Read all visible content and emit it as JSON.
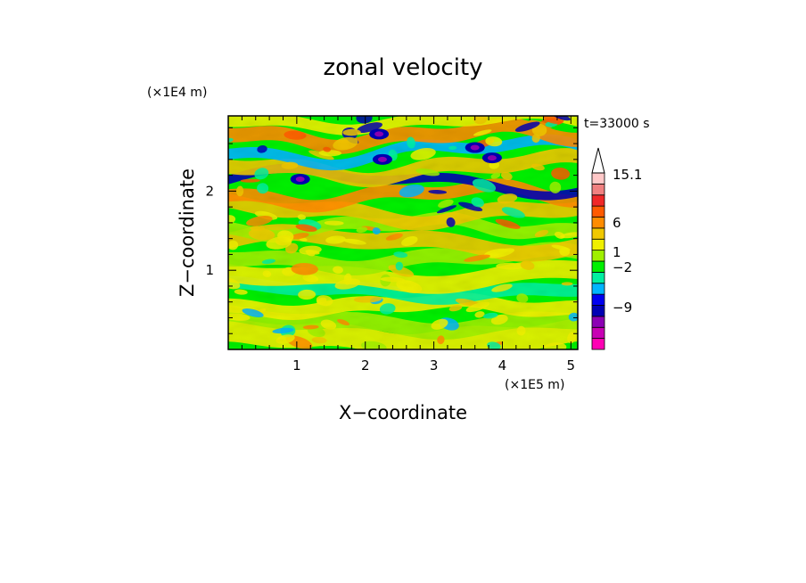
{
  "chart_data": {
    "type": "heatmap",
    "title": "zonal velocity",
    "xlabel": "X−coordinate",
    "ylabel": "Z−coordinate",
    "x_unit": "(×1E5 m)",
    "y_unit": "(×1E4 m)",
    "time_label": "t=33000 s",
    "xlim": [
      0,
      5.1
    ],
    "ylim": [
      0,
      2.95
    ],
    "x_ticks": [
      1,
      2,
      3,
      4,
      5
    ],
    "x_tick_labels": [
      "1",
      "2",
      "3",
      "4",
      "5"
    ],
    "y_ticks": [
      1,
      2
    ],
    "y_tick_labels": [
      "1",
      "2"
    ],
    "colorbar": {
      "levels": [
        -16,
        -12,
        -9,
        -6,
        -4,
        -2,
        -1,
        0,
        1,
        2,
        4,
        6,
        8,
        10,
        12.5,
        15.1
      ],
      "colors": [
        "#ff00b4",
        "#c800b4",
        "#8c00b4",
        "#0000b4",
        "#0000f0",
        "#00b4ff",
        "#00f0a0",
        "#00f000",
        "#a0f000",
        "#f0f000",
        "#f0c800",
        "#ff8c00",
        "#ff5a00",
        "#f02828",
        "#f08080",
        "#ffc8c8"
      ],
      "labeled_values": [
        "15.1",
        "6",
        "1",
        "−2",
        "−9"
      ],
      "extend_top_arrow": true
    },
    "grid": false
  }
}
